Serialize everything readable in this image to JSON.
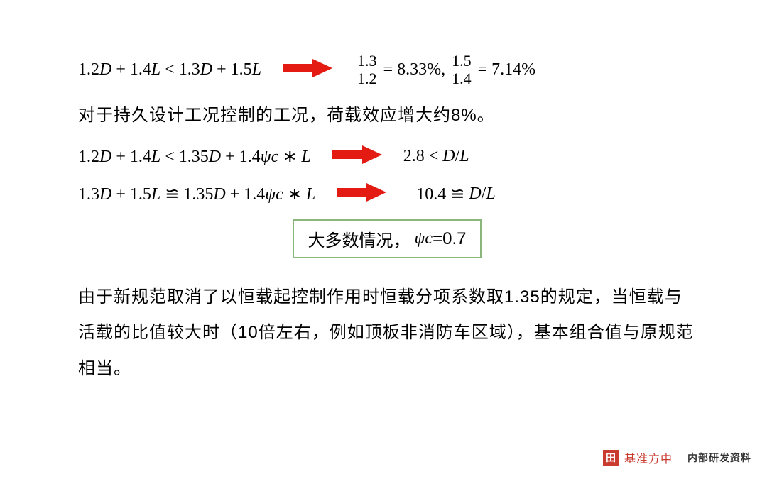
{
  "arrow": {
    "fill": "#e31b13",
    "width": 70,
    "height": 26
  },
  "row1": {
    "left_html": "<span class='num'>1.2</span>D <span class='num'>+ 1.4</span>L&nbsp;<span class='num'>&lt;</span>&nbsp;<span class='num'>1.3</span>D <span class='num'>+ 1.5</span>L",
    "right_frac1_top": "1.3",
    "right_frac1_bot": "1.2",
    "right_eq1": "= 8.33%,",
    "right_frac2_top": "1.5",
    "right_frac2_bot": "1.4",
    "right_eq2": "= 7.14%"
  },
  "text1": "对于持久设计工况控制的工况，荷载效应增大约8%。",
  "row2": {
    "left_html": "<span class='num'>1.2</span>D <span class='num'>+ 1.4</span>L&nbsp;<span class='num'>&lt;</span>&nbsp;<span class='num'>1.35</span>D <span class='num'>+ 1.4</span>ψc <span class='num'>∗</span> L",
    "right_html": "<span class='num'>2.8&nbsp;&lt;&nbsp;</span>D <span class='num'>/</span>L"
  },
  "row3": {
    "left_html": "<span class='num'>1.3</span>D <span class='num'>+ 1.5</span>L&nbsp;<span class='num'>≌</span>&nbsp;<span class='num'>1.35</span>D <span class='num'>+ 1.4</span>ψc <span class='num'>∗</span> L",
    "right_html": "<span class='num'>10.4&nbsp;≌&nbsp;</span>D<span class='num'>/</span>L"
  },
  "box": {
    "prefix": "大多数情况，",
    "psi": "ψc",
    "value": "=0.7",
    "border_color": "#8bb77a"
  },
  "para": "由于新规范取消了以恒载起控制作用时恒载分项系数取1.35的规定，当恒载与活载的比值较大时（10倍左右，例如顶板非消防车区域），基本组合值与原规范相当。",
  "footer": {
    "logo_glyph": "田",
    "brand": "基准方中",
    "note": "内部研发资料",
    "brand_color": "#c93a2f"
  }
}
